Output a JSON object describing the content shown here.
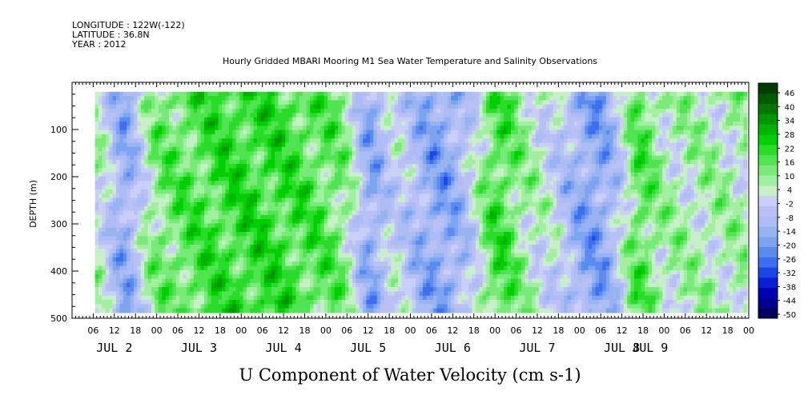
{
  "header": {
    "longitude": "LONGITUDE : 122W(-122)",
    "latitude": "LATITUDE : 36.8N",
    "year": "YEAR : 2012"
  },
  "chart_data": {
    "type": "heatmap",
    "title": "Hourly Gridded MBARI Mooring M1 Sea Water Temperature and Salinity Observations",
    "variable_label": "U Component of Water Velocity (cm s-1)",
    "ylabel": "DEPTH (m)",
    "y_axis": {
      "range": [
        10,
        500
      ],
      "reversed": true,
      "ticks": [
        100,
        200,
        300,
        400,
        500
      ]
    },
    "x_axis": {
      "start_hour": 0,
      "end_hour": 192,
      "hour_tick_labels": [
        "06",
        "12",
        "18",
        "00",
        "06",
        "12",
        "18",
        "00",
        "06",
        "12",
        "18",
        "00",
        "06",
        "12",
        "18",
        "00",
        "06",
        "12",
        "18",
        "00",
        "06",
        "12",
        "18",
        "00",
        "06",
        "12",
        "18",
        "00",
        "06",
        "12",
        "18",
        "00"
      ],
      "day_labels": [
        {
          "label": "JUL 2",
          "hour": 12
        },
        {
          "label": "JUL 3",
          "hour": 36
        },
        {
          "label": "JUL 4",
          "hour": 60
        },
        {
          "label": "JUL 5",
          "hour": 84
        },
        {
          "label": "JUL 6",
          "hour": 108
        },
        {
          "label": "JUL 7",
          "hour": 132
        },
        {
          "label": "JUL 8",
          "hour": 156
        },
        {
          "label": "JUL 9",
          "hour": 164
        }
      ]
    },
    "colorbar": {
      "labels": [
        46,
        40,
        34,
        28,
        22,
        16,
        10,
        4,
        -2,
        -8,
        -14,
        -20,
        -26,
        -32,
        -38,
        -44,
        -50
      ],
      "range": [
        -50,
        49
      ],
      "colors": [
        "#000060",
        "#00008c",
        "#0000b4",
        "#0a1ed2",
        "#1e46e6",
        "#3c6ef0",
        "#5a8cf0",
        "#7ca4f0",
        "#98b4f0",
        "#acbcf4",
        "#b8c0f4",
        "#c8d0f8",
        "#c8f0c8",
        "#a0f0a0",
        "#78ea78",
        "#50e450",
        "#28dc28",
        "#00d000",
        "#00b400",
        "#009600",
        "#007800",
        "#005a00",
        "#003c00"
      ]
    },
    "field_description_bands": [
      {
        "hour_start": 12,
        "hour_end": 17,
        "sign": "negative"
      },
      {
        "hour_start": 24,
        "hour_end": 78,
        "sign": "positive"
      },
      {
        "hour_start": 82,
        "hour_end": 86,
        "sign": "negative"
      },
      {
        "hour_start": 95,
        "hour_end": 112,
        "sign": "negative"
      },
      {
        "hour_start": 117,
        "hour_end": 123,
        "sign": "positive"
      },
      {
        "hour_start": 140,
        "hour_end": 155,
        "sign": "negative"
      },
      {
        "hour_start": 158,
        "hour_end": 162,
        "sign": "positive"
      }
    ]
  }
}
